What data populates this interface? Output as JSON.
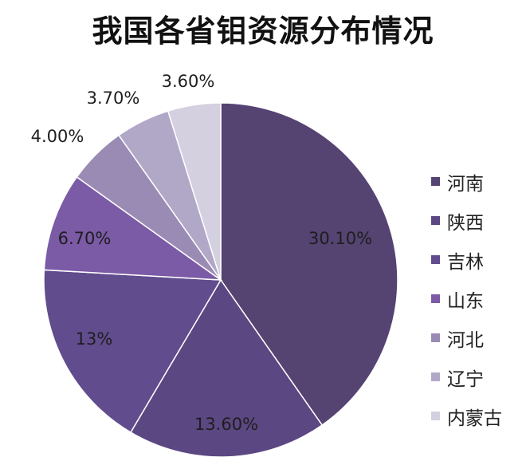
{
  "chart_data": {
    "type": "pie",
    "title": "我国各省钼资源分布情况",
    "slices": [
      {
        "name": "河南",
        "value": 30.1,
        "label": "30.10%",
        "color": "#554372"
      },
      {
        "name": "陕西",
        "value": 13.6,
        "label": "13.60%",
        "color": "#5b4782"
      },
      {
        "name": "吉林",
        "value": 13.0,
        "label": "13%",
        "color": "#614c8e"
      },
      {
        "name": "山东",
        "value": 6.7,
        "label": "6.70%",
        "color": "#7b5aa6"
      },
      {
        "name": "河北",
        "value": 4.0,
        "label": "4.00%",
        "color": "#9a8bb5"
      },
      {
        "name": "辽宁",
        "value": 3.7,
        "label": "3.70%",
        "color": "#b1a8c8"
      },
      {
        "name": "内蒙古",
        "value": 3.6,
        "label": "3.60%",
        "color": "#d4d0e0"
      }
    ],
    "legend_position": "right"
  }
}
